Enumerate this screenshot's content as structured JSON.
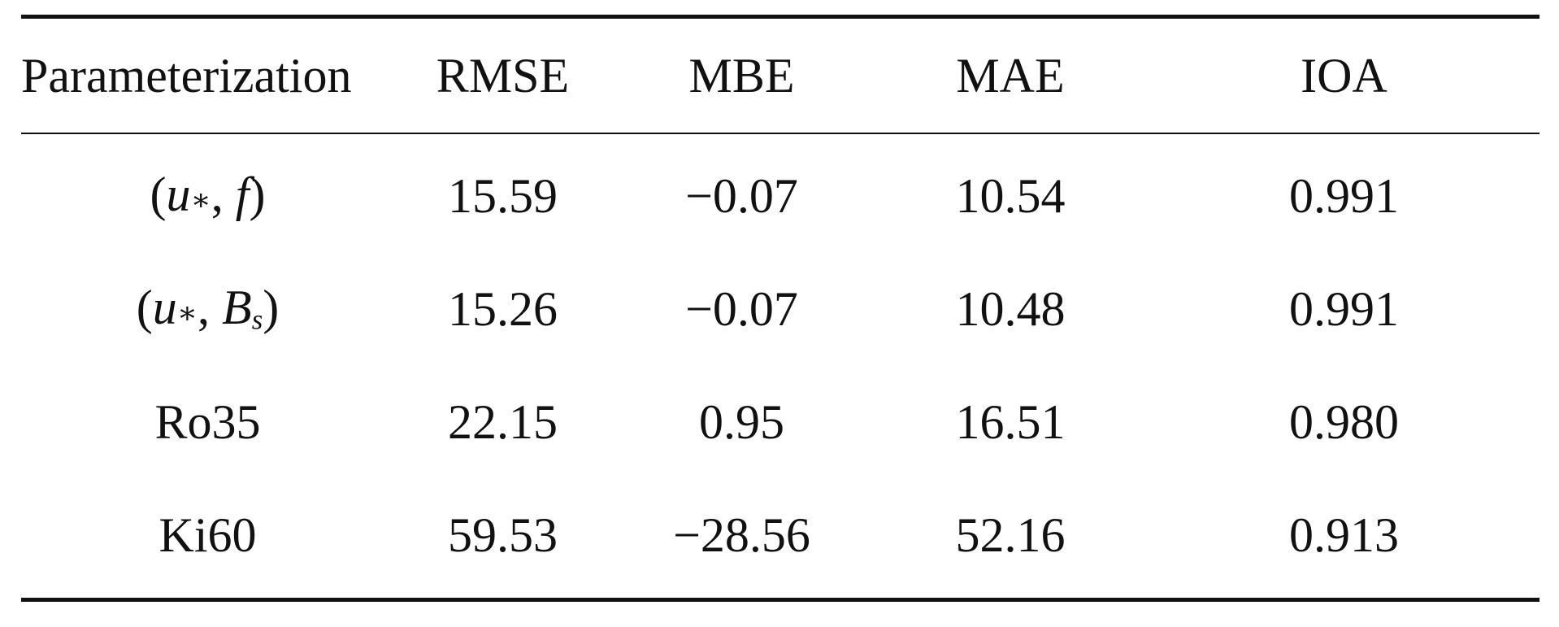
{
  "table": {
    "headers": [
      "Parameterization",
      "RMSE",
      "MBE",
      "MAE",
      "IOA"
    ],
    "rows": [
      {
        "parameterization": {
          "prefix": "(",
          "var1": "u",
          "var1_sub": "∗",
          "separator": ", ",
          "var2": "f",
          "var2_sub": "",
          "suffix": ")"
        },
        "rmse": "15.59",
        "mbe": "−0.07",
        "mae": "10.54",
        "ioa": "0.991"
      },
      {
        "parameterization": {
          "prefix": "(",
          "var1": "u",
          "var1_sub": "∗",
          "separator": ", ",
          "var2": "B",
          "var2_sub": "s",
          "suffix": ")"
        },
        "rmse": "15.26",
        "mbe": "−0.07",
        "mae": "10.48",
        "ioa": "0.991"
      },
      {
        "parameterization_text": "Ro35",
        "rmse": "22.15",
        "mbe": "0.95",
        "mae": "16.51",
        "ioa": "0.980"
      },
      {
        "parameterization_text": "Ki60",
        "rmse": "59.53",
        "mbe": "−28.56",
        "mae": "52.16",
        "ioa": "0.913"
      }
    ]
  }
}
